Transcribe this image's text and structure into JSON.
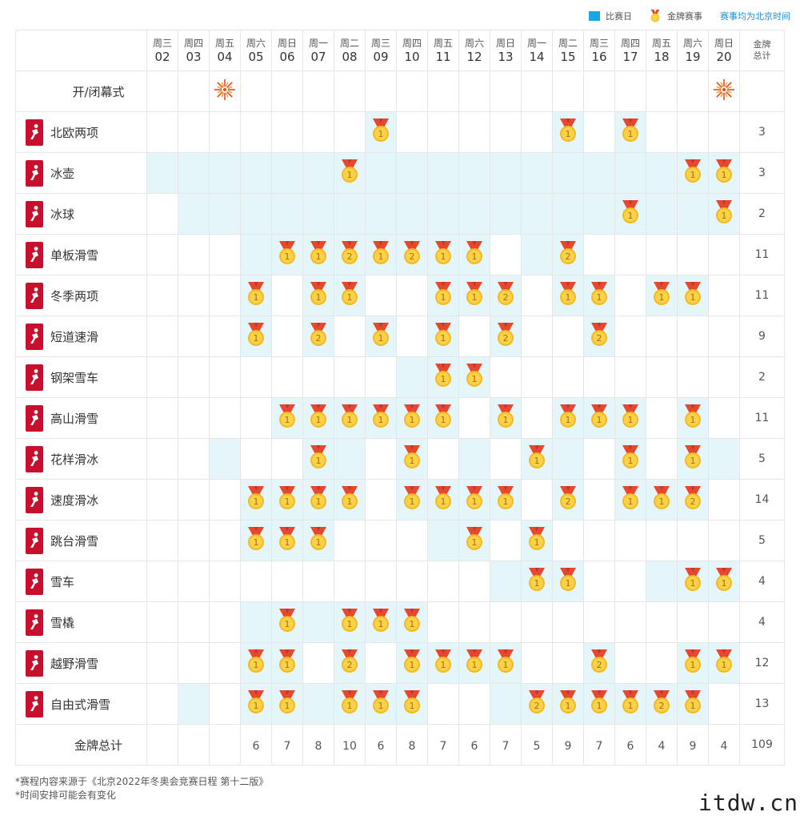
{
  "legend": {
    "competition_day": "比赛日",
    "gold_event": "金牌赛事",
    "note": "赛事均为北京时间",
    "competition_color": "#1aa6e4"
  },
  "header": {
    "days": [
      {
        "w": "周三",
        "d": "02"
      },
      {
        "w": "周四",
        "d": "03"
      },
      {
        "w": "周五",
        "d": "04"
      },
      {
        "w": "周六",
        "d": "05"
      },
      {
        "w": "周日",
        "d": "06"
      },
      {
        "w": "周一",
        "d": "07"
      },
      {
        "w": "周二",
        "d": "08"
      },
      {
        "w": "周三",
        "d": "09"
      },
      {
        "w": "周四",
        "d": "10"
      },
      {
        "w": "周五",
        "d": "11"
      },
      {
        "w": "周六",
        "d": "12"
      },
      {
        "w": "周日",
        "d": "13"
      },
      {
        "w": "周一",
        "d": "14"
      },
      {
        "w": "周二",
        "d": "15"
      },
      {
        "w": "周三",
        "d": "16"
      },
      {
        "w": "周四",
        "d": "17"
      },
      {
        "w": "周五",
        "d": "18"
      },
      {
        "w": "周六",
        "d": "19"
      },
      {
        "w": "周日",
        "d": "20"
      }
    ],
    "total_label_1": "金牌",
    "total_label_2": "总计"
  },
  "ceremony": {
    "label": "开/闭幕式",
    "days": [
      "04",
      "20"
    ]
  },
  "sports": [
    {
      "name": "北欧两项",
      "icon": "nordic-combined-icon",
      "total": "3",
      "on": [
        7,
        13,
        15
      ],
      "medals": {
        "7": 1,
        "13": 1,
        "15": 1
      }
    },
    {
      "name": "冰壶",
      "icon": "curling-icon",
      "total": "3",
      "on": [
        0,
        1,
        2,
        3,
        4,
        5,
        6,
        7,
        8,
        9,
        10,
        11,
        12,
        13,
        14,
        15,
        16,
        17,
        18
      ],
      "medals": {
        "6": 1,
        "17": 1,
        "18": 1
      }
    },
    {
      "name": "冰球",
      "icon": "ice-hockey-icon",
      "total": "2",
      "on": [
        1,
        2,
        3,
        4,
        5,
        6,
        7,
        8,
        9,
        10,
        11,
        12,
        13,
        14,
        15,
        16,
        17,
        18
      ],
      "medals": {
        "15": 1,
        "18": 1
      }
    },
    {
      "name": "单板滑雪",
      "icon": "snowboard-icon",
      "total": "11",
      "on": [
        3,
        4,
        5,
        6,
        7,
        8,
        9,
        10,
        12,
        13
      ],
      "medals": {
        "4": 1,
        "5": 1,
        "6": 2,
        "7": 1,
        "8": 2,
        "9": 1,
        "10": 1,
        "13": 2
      }
    },
    {
      "name": "冬季两项",
      "icon": "biathlon-icon",
      "total": "11",
      "on": [
        3,
        5,
        6,
        9,
        10,
        11,
        13,
        14,
        16,
        17
      ],
      "medals": {
        "3": 1,
        "5": 1,
        "6": 1,
        "9": 1,
        "10": 1,
        "11": 2,
        "13": 1,
        "14": 1,
        "16": 1,
        "17": 1
      }
    },
    {
      "name": "短道速滑",
      "icon": "short-track-icon",
      "total": "9",
      "on": [
        3,
        5,
        7,
        9,
        11,
        14
      ],
      "medals": {
        "3": 1,
        "5": 2,
        "7": 1,
        "9": 1,
        "11": 2,
        "14": 2
      }
    },
    {
      "name": "钢架雪车",
      "icon": "skeleton-icon",
      "total": "2",
      "on": [
        8,
        9,
        10
      ],
      "medals": {
        "9": 1,
        "10": 1
      }
    },
    {
      "name": "高山滑雪",
      "icon": "alpine-skiing-icon",
      "total": "11",
      "on": [
        4,
        5,
        6,
        7,
        8,
        9,
        11,
        13,
        14,
        15,
        17
      ],
      "medals": {
        "4": 1,
        "5": 1,
        "6": 1,
        "7": 1,
        "8": 1,
        "9": 1,
        "11": 1,
        "13": 1,
        "14": 1,
        "15": 1,
        "17": 1
      }
    },
    {
      "name": "花样滑冰",
      "icon": "figure-skating-icon",
      "total": "5",
      "on": [
        2,
        5,
        6,
        8,
        10,
        12,
        13,
        15,
        17,
        18
      ],
      "medals": {
        "5": 1,
        "8": 1,
        "12": 1,
        "15": 1,
        "17": 1
      }
    },
    {
      "name": "速度滑冰",
      "icon": "speed-skating-icon",
      "total": "14",
      "on": [
        3,
        4,
        5,
        6,
        8,
        9,
        10,
        11,
        13,
        15,
        16,
        17
      ],
      "medals": {
        "3": 1,
        "4": 1,
        "5": 1,
        "6": 1,
        "8": 1,
        "9": 1,
        "10": 1,
        "11": 1,
        "13": 2,
        "15": 1,
        "16": 1,
        "17": 2
      }
    },
    {
      "name": "跳台滑雪",
      "icon": "ski-jumping-icon",
      "total": "5",
      "on": [
        3,
        4,
        5,
        9,
        10,
        12
      ],
      "medals": {
        "3": 1,
        "4": 1,
        "5": 1,
        "10": 1,
        "12": 1
      }
    },
    {
      "name": "雪车",
      "icon": "bobsleigh-icon",
      "total": "4",
      "on": [
        11,
        12,
        13,
        16,
        17,
        18
      ],
      "medals": {
        "12": 1,
        "13": 1,
        "17": 1,
        "18": 1
      }
    },
    {
      "name": "雪橇",
      "icon": "luge-icon",
      "total": "4",
      "on": [
        3,
        4,
        5,
        6,
        7,
        8
      ],
      "medals": {
        "4": 1,
        "6": 1,
        "7": 1,
        "8": 1
      }
    },
    {
      "name": "越野滑雪",
      "icon": "cross-country-icon",
      "total": "12",
      "on": [
        3,
        4,
        6,
        8,
        9,
        10,
        11,
        14,
        17,
        18
      ],
      "medals": {
        "3": 1,
        "4": 1,
        "6": 2,
        "8": 1,
        "9": 1,
        "10": 1,
        "11": 1,
        "14": 2,
        "17": 1,
        "18": 1
      }
    },
    {
      "name": "自由式滑雪",
      "icon": "freestyle-skiing-icon",
      "total": "13",
      "on": [
        1,
        3,
        4,
        5,
        6,
        7,
        8,
        11,
        12,
        13,
        14,
        15,
        16,
        17
      ],
      "medals": {
        "3": 1,
        "4": 1,
        "6": 1,
        "7": 1,
        "8": 1,
        "12": 2,
        "13": 1,
        "14": 1,
        "15": 1,
        "16": 2,
        "17": 1
      }
    }
  ],
  "totals": {
    "label": "金牌总计",
    "values": [
      "",
      "",
      "",
      "6",
      "7",
      "8",
      "10",
      "6",
      "8",
      "7",
      "6",
      "7",
      "5",
      "9",
      "7",
      "6",
      "4",
      "9",
      "4"
    ],
    "grand": "109"
  },
  "footnotes": [
    "*赛程内容来源于《北京2022年冬奥会竞赛日程 第十二版》",
    "*时间安排可能会有变化"
  ],
  "watermark": "itdw.cn"
}
